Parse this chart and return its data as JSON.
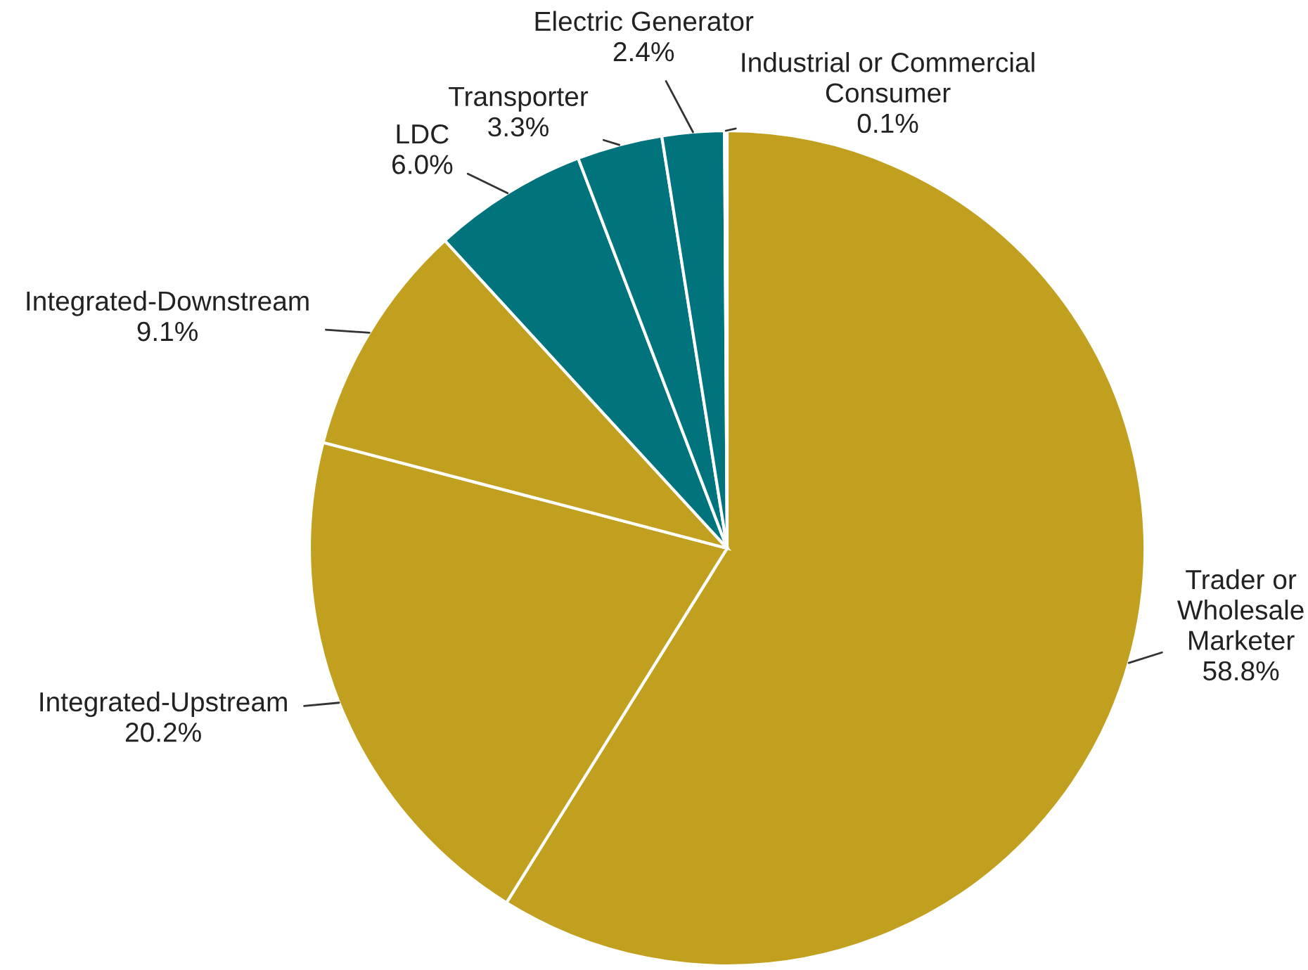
{
  "chart_data": {
    "type": "pie",
    "categories": [
      "Trader or\nWholesale\nMarketer",
      "Integrated-Upstream",
      "Integrated-Downstream",
      "LDC",
      "Transporter",
      "Electric Generator",
      "Industrial or Commercial\nConsumer"
    ],
    "values": [
      58.8,
      20.2,
      9.1,
      6.0,
      3.3,
      2.4,
      0.1
    ],
    "colors": [
      "#c1a020",
      "#c1a020",
      "#c1a020",
      "#00737d",
      "#00737d",
      "#00737d",
      "#00737d"
    ],
    "value_labels": [
      "58.8%",
      "20.2%",
      "9.1%",
      "6.0%",
      "3.3%",
      "2.4%",
      "0.1%"
    ],
    "legend": false
  }
}
